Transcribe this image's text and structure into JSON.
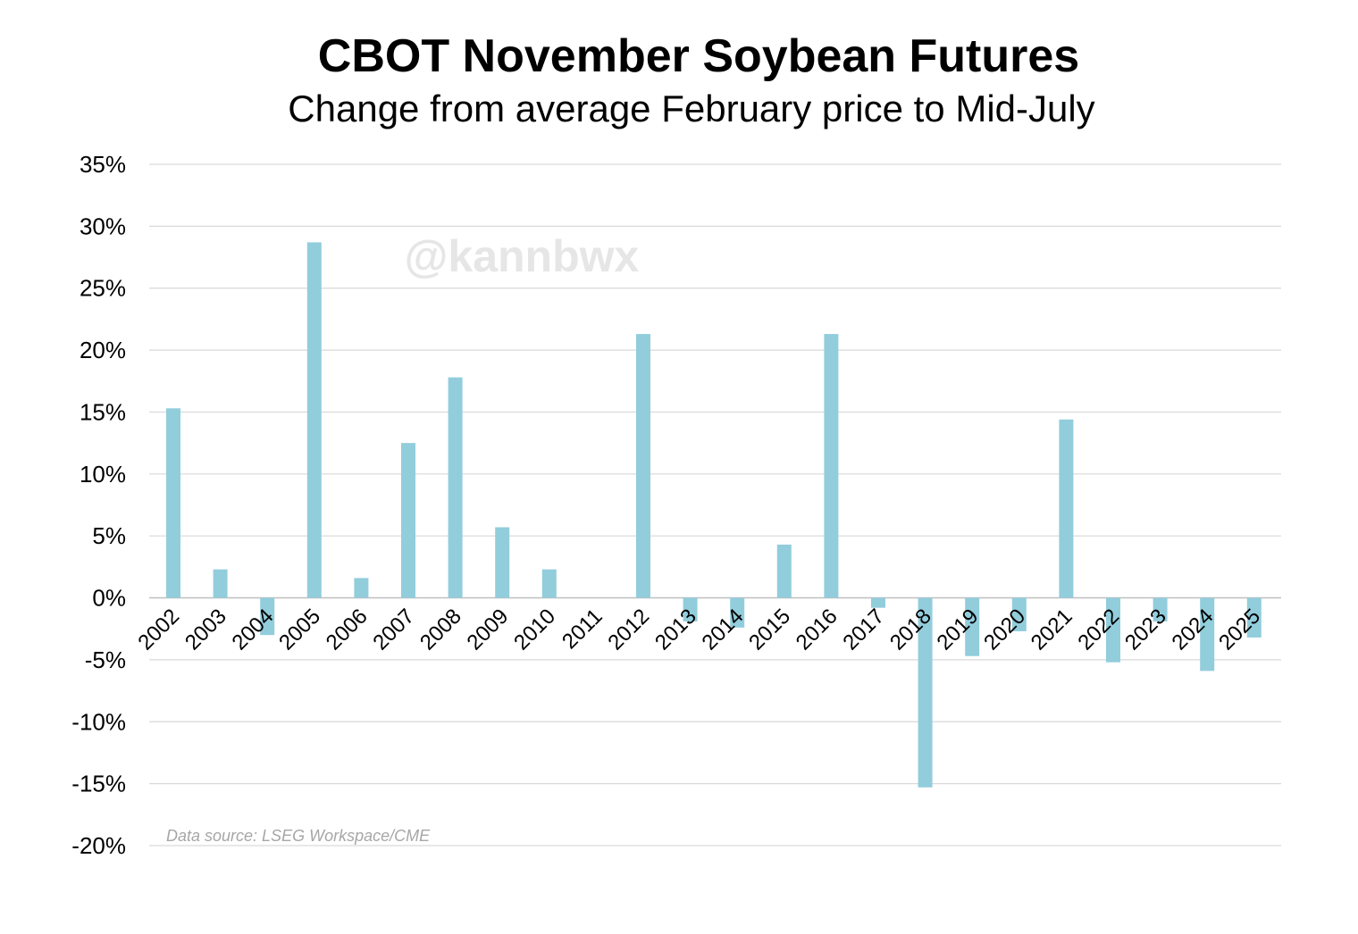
{
  "chart_data": {
    "type": "bar",
    "title": "CBOT November Soybean Futures",
    "subtitle": "Change from average February price to Mid-July",
    "xlabel": "",
    "ylabel": "",
    "categories": [
      "2002",
      "2003",
      "2004",
      "2005",
      "2006",
      "2007",
      "2008",
      "2009",
      "2010",
      "2011",
      "2012",
      "2013",
      "2014",
      "2015",
      "2016",
      "2017",
      "2018",
      "2019",
      "2020",
      "2021",
      "2022",
      "2023",
      "2024",
      "2025"
    ],
    "values": [
      15.3,
      2.3,
      -3.0,
      28.7,
      1.6,
      12.5,
      17.8,
      5.7,
      2.3,
      0.0,
      21.3,
      -1.9,
      -2.4,
      4.3,
      21.3,
      -0.8,
      -15.3,
      -4.7,
      -2.7,
      14.4,
      -5.2,
      -1.9,
      -5.9,
      -3.2
    ],
    "ylim": [
      -20,
      35
    ],
    "yticks": [
      35,
      30,
      25,
      20,
      15,
      10,
      5,
      0,
      -5,
      -10,
      -15,
      -20
    ],
    "ytick_labels": [
      "35%",
      "30%",
      "25%",
      "20%",
      "15%",
      "10%",
      "5%",
      "0%",
      "-5%",
      "-10%",
      "-15%",
      "-20%"
    ],
    "grid": true,
    "legend": "none",
    "bar_color": "#92cddc",
    "annotations": {
      "watermark": "@kannbwx",
      "source": "Data source: LSEG Workspace/CME"
    }
  }
}
